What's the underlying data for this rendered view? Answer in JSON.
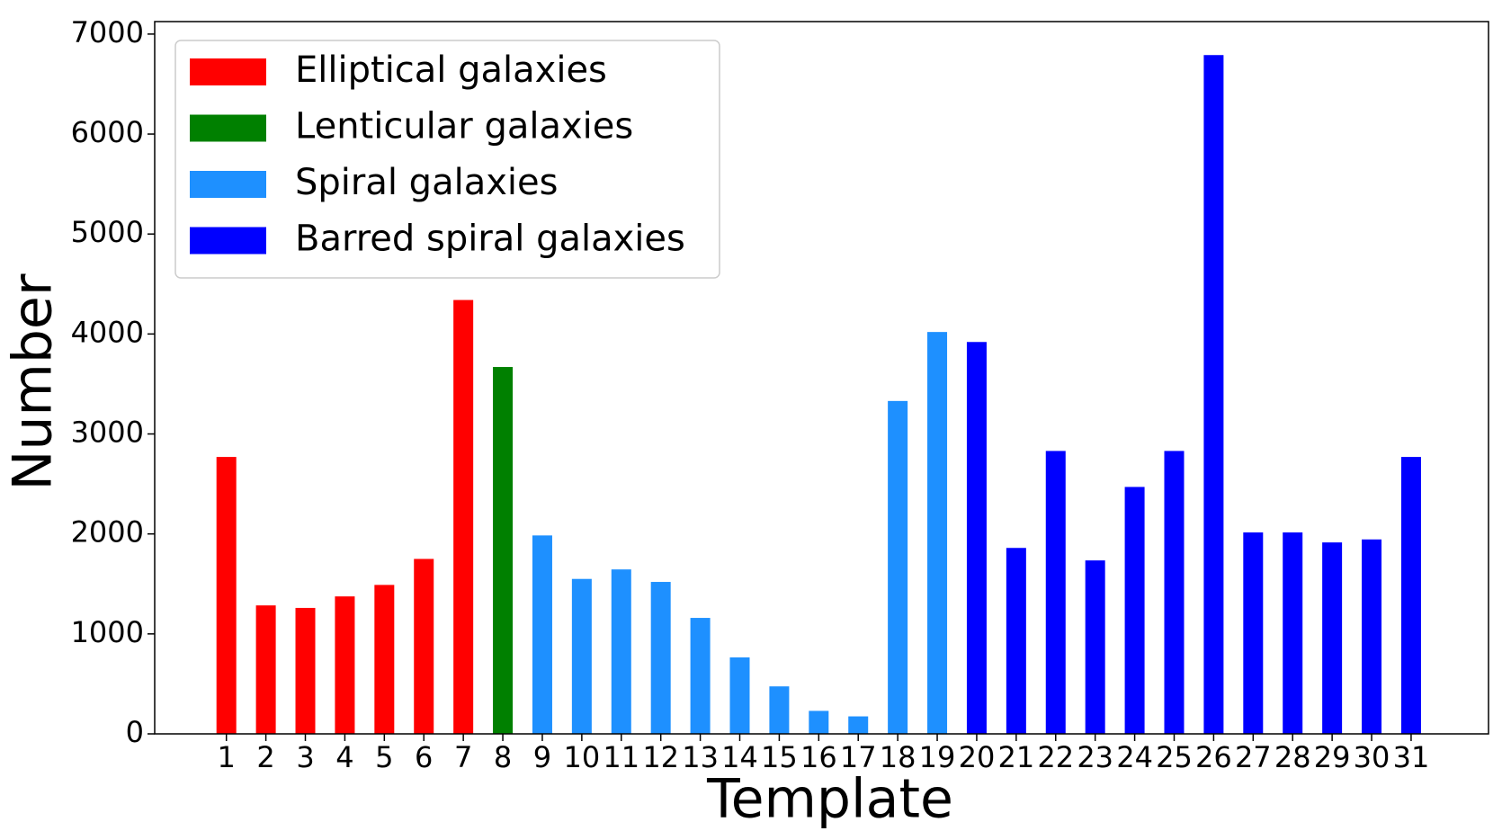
{
  "chart_data": {
    "type": "bar",
    "xlabel": "Template",
    "ylabel": "Number",
    "categories": [
      "1",
      "2",
      "3",
      "4",
      "5",
      "6",
      "7",
      "8",
      "9",
      "10",
      "11",
      "12",
      "13",
      "14",
      "15",
      "16",
      "17",
      "18",
      "19",
      "20",
      "21",
      "22",
      "23",
      "24",
      "25",
      "26",
      "27",
      "28",
      "29",
      "30",
      "31"
    ],
    "series": [
      {
        "name": "Elliptical galaxies",
        "color": "#ff0000",
        "values": [
          2770,
          1285,
          1260,
          1375,
          1490,
          1750,
          4340,
          null,
          null,
          null,
          null,
          null,
          null,
          null,
          null,
          null,
          null,
          null,
          null,
          null,
          null,
          null,
          null,
          null,
          null,
          null,
          null,
          null,
          null,
          null,
          null
        ]
      },
      {
        "name": "Lenticular galaxies",
        "color": "#008000",
        "values": [
          null,
          null,
          null,
          null,
          null,
          null,
          null,
          3670,
          null,
          null,
          null,
          null,
          null,
          null,
          null,
          null,
          null,
          null,
          null,
          null,
          null,
          null,
          null,
          null,
          null,
          null,
          null,
          null,
          null,
          null,
          null
        ]
      },
      {
        "name": "Spiral galaxies",
        "color": "#1e90ff",
        "values": [
          null,
          null,
          null,
          null,
          null,
          null,
          null,
          null,
          1985,
          1550,
          1645,
          1520,
          1160,
          765,
          475,
          230,
          175,
          3330,
          4020,
          null,
          null,
          null,
          null,
          null,
          null,
          null,
          null,
          null,
          null,
          null,
          null
        ]
      },
      {
        "name": "Barred spiral galaxies",
        "color": "#0000ff",
        "values": [
          null,
          null,
          null,
          null,
          null,
          null,
          null,
          null,
          null,
          null,
          null,
          null,
          null,
          null,
          null,
          null,
          null,
          null,
          null,
          3920,
          1860,
          2830,
          1735,
          2470,
          2830,
          6790,
          2015,
          2015,
          1915,
          1945,
          2770
        ]
      }
    ],
    "ylim": [
      0,
      7125
    ],
    "yticks": [
      0,
      1000,
      2000,
      3000,
      4000,
      5000,
      6000,
      7000
    ],
    "grid": false,
    "legend": "upper left"
  }
}
